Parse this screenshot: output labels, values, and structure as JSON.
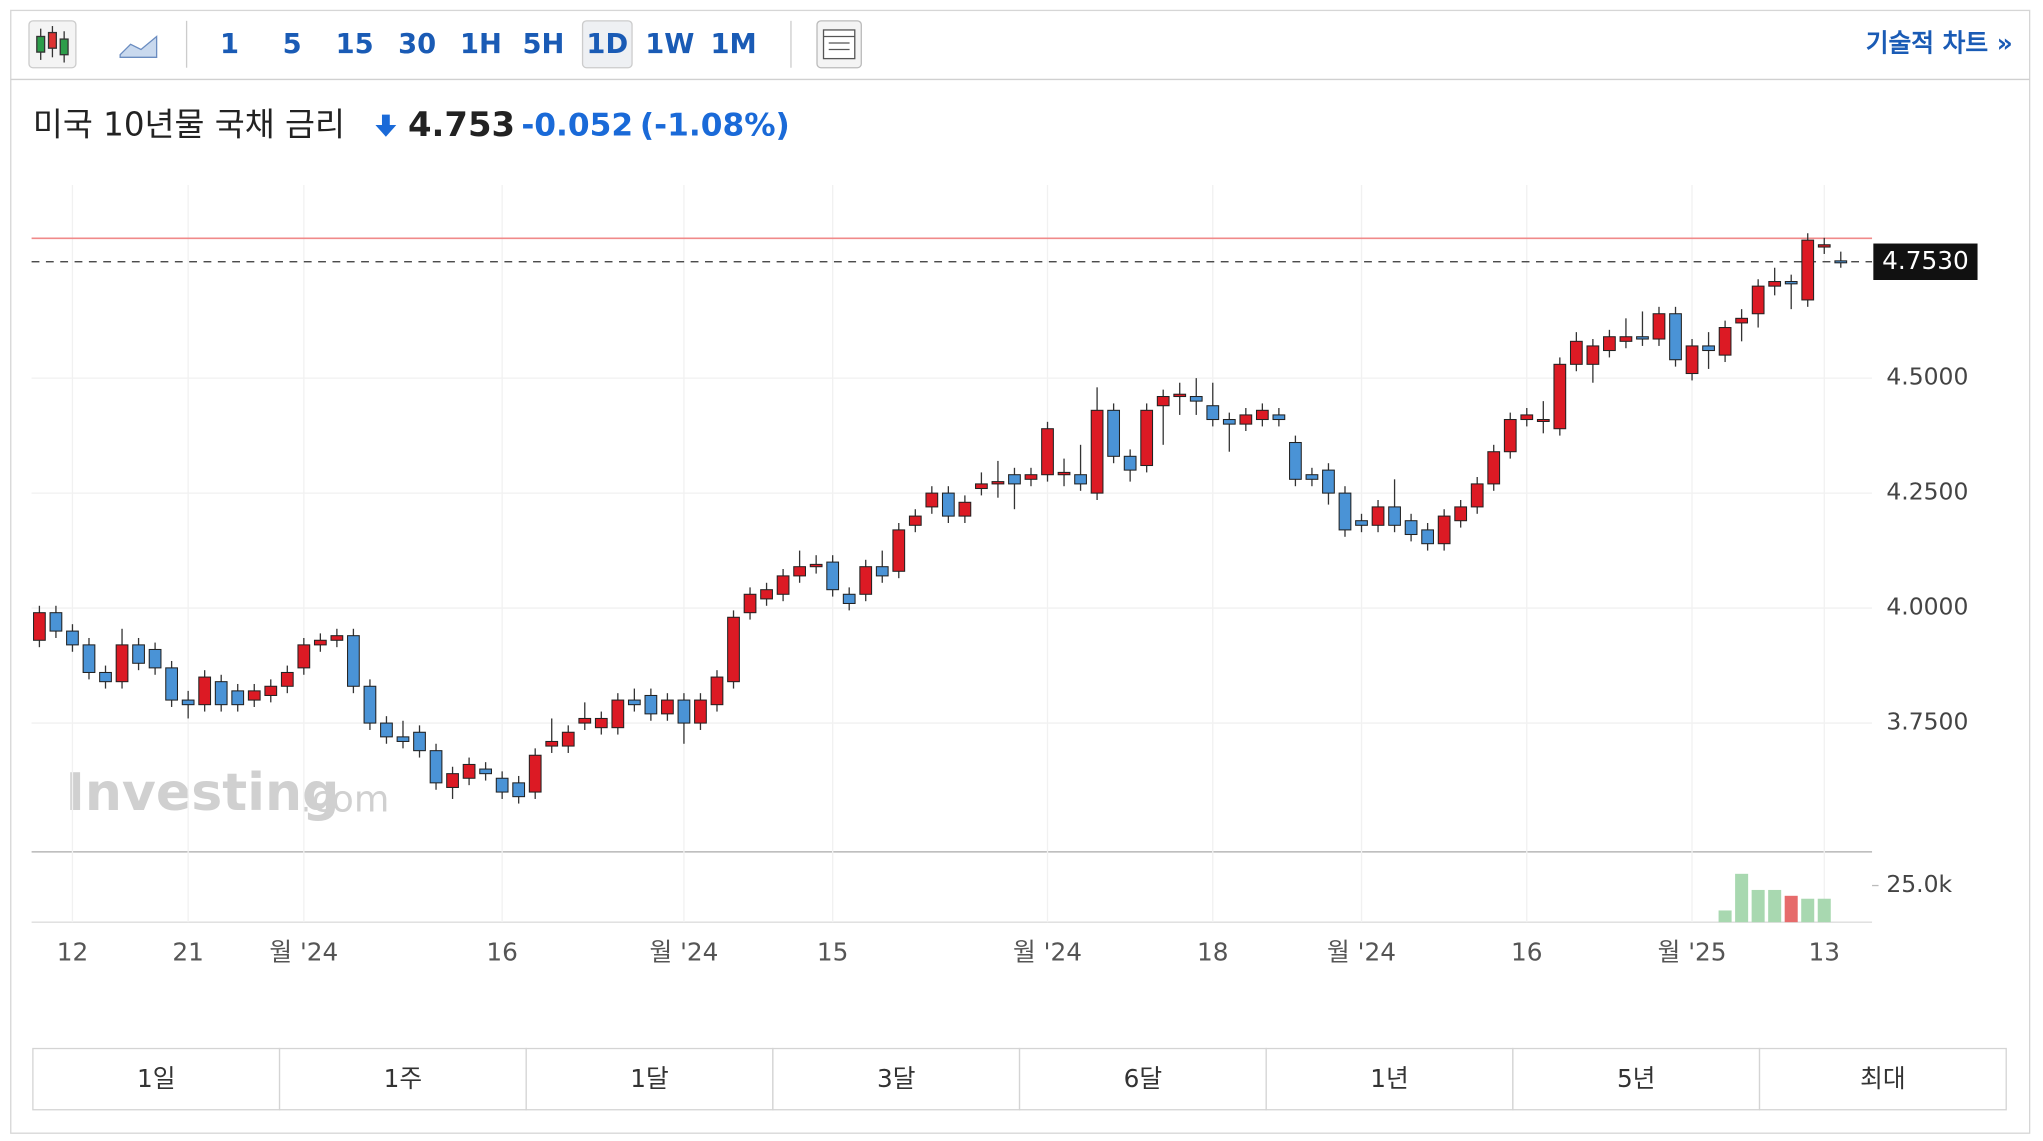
{
  "toolbar": {
    "intervals": [
      "1",
      "5",
      "15",
      "30",
      "1H",
      "5H",
      "1D",
      "1W",
      "1M"
    ],
    "selected": 6,
    "technical": "기술적 차트 »"
  },
  "header": {
    "title": "미국 10년물 국채 금리",
    "price": "4.753",
    "change": "-0.052",
    "change_pct": "(-1.08%)"
  },
  "watermark": {
    "brand": "Investing",
    "suffix": ".com"
  },
  "ranges": [
    "1일",
    "1주",
    "1달",
    "3달",
    "6달",
    "1년",
    "5년",
    "최대"
  ],
  "chart_data": {
    "type": "candlestick",
    "up_color": "#dc1a24",
    "down_color": "#4a93d6",
    "volume_up_color": "#a8d8b0",
    "volume_down_color": "#e66b6b",
    "ylim": [
      3.47,
      4.92
    ],
    "yticks": [
      {
        "value": 3.75,
        "label": "3.7500"
      },
      {
        "value": 4.0,
        "label": "4.0000"
      },
      {
        "value": 4.25,
        "label": "4.2500"
      },
      {
        "value": 4.5,
        "label": "4.5000"
      }
    ],
    "last_price": {
      "value": 4.753,
      "label": "4.7530"
    },
    "high_line": 4.804,
    "vlim": [
      0,
      48000
    ],
    "vticks": [
      {
        "value": 25000,
        "label": "25.0k"
      }
    ],
    "grid": true,
    "categories": [
      null,
      null,
      "12",
      null,
      null,
      null,
      null,
      null,
      null,
      "21",
      null,
      null,
      null,
      null,
      null,
      null,
      "월 '24",
      null,
      null,
      null,
      null,
      null,
      null,
      null,
      null,
      null,
      null,
      null,
      "16",
      null,
      null,
      null,
      null,
      null,
      null,
      null,
      null,
      null,
      null,
      "월 '24",
      null,
      null,
      null,
      null,
      null,
      null,
      null,
      null,
      "15",
      null,
      null,
      null,
      null,
      null,
      null,
      null,
      null,
      null,
      null,
      null,
      null,
      "월 '24",
      null,
      null,
      null,
      null,
      null,
      null,
      null,
      null,
      null,
      "18",
      null,
      null,
      null,
      null,
      null,
      null,
      null,
      null,
      "월 '24",
      null,
      null,
      null,
      null,
      null,
      null,
      null,
      null,
      null,
      "16",
      null,
      null,
      null,
      null,
      null,
      null,
      null,
      null,
      null,
      "월 '25",
      null,
      null,
      null,
      null,
      null,
      null,
      null,
      "13",
      null
    ],
    "ohlc": [
      [
        3.93,
        4.005,
        3.915,
        3.99
      ],
      [
        3.99,
        4.005,
        3.935,
        3.95
      ],
      [
        3.95,
        3.965,
        3.905,
        3.92
      ],
      [
        3.92,
        3.935,
        3.845,
        3.86
      ],
      [
        3.86,
        3.875,
        3.825,
        3.84
      ],
      [
        3.84,
        3.955,
        3.825,
        3.92
      ],
      [
        3.92,
        3.935,
        3.865,
        3.88
      ],
      [
        3.91,
        3.925,
        3.855,
        3.87
      ],
      [
        3.87,
        3.885,
        3.785,
        3.8
      ],
      [
        3.8,
        3.82,
        3.76,
        3.79
      ],
      [
        3.79,
        3.865,
        3.775,
        3.85
      ],
      [
        3.84,
        3.855,
        3.775,
        3.79
      ],
      [
        3.82,
        3.835,
        3.775,
        3.79
      ],
      [
        3.8,
        3.835,
        3.785,
        3.82
      ],
      [
        3.81,
        3.845,
        3.795,
        3.83
      ],
      [
        3.83,
        3.875,
        3.815,
        3.86
      ],
      [
        3.87,
        3.935,
        3.855,
        3.92
      ],
      [
        3.92,
        3.945,
        3.905,
        3.93
      ],
      [
        3.93,
        3.955,
        3.915,
        3.94
      ],
      [
        3.94,
        3.955,
        3.815,
        3.83
      ],
      [
        3.83,
        3.845,
        3.735,
        3.75
      ],
      [
        3.75,
        3.765,
        3.705,
        3.72
      ],
      [
        3.72,
        3.755,
        3.695,
        3.71
      ],
      [
        3.73,
        3.745,
        3.675,
        3.69
      ],
      [
        3.69,
        3.705,
        3.605,
        3.62
      ],
      [
        3.61,
        3.655,
        3.585,
        3.64
      ],
      [
        3.63,
        3.675,
        3.615,
        3.66
      ],
      [
        3.65,
        3.665,
        3.625,
        3.64
      ],
      [
        3.63,
        3.645,
        3.585,
        3.6
      ],
      [
        3.62,
        3.635,
        3.575,
        3.59
      ],
      [
        3.6,
        3.695,
        3.585,
        3.68
      ],
      [
        3.7,
        3.76,
        3.685,
        3.71
      ],
      [
        3.7,
        3.745,
        3.685,
        3.73
      ],
      [
        3.75,
        3.795,
        3.735,
        3.76
      ],
      [
        3.74,
        3.775,
        3.725,
        3.76
      ],
      [
        3.74,
        3.815,
        3.725,
        3.8
      ],
      [
        3.8,
        3.825,
        3.775,
        3.79
      ],
      [
        3.81,
        3.825,
        3.755,
        3.77
      ],
      [
        3.77,
        3.815,
        3.755,
        3.8
      ],
      [
        3.8,
        3.815,
        3.705,
        3.75
      ],
      [
        3.75,
        3.815,
        3.735,
        3.8
      ],
      [
        3.79,
        3.865,
        3.775,
        3.85
      ],
      [
        3.84,
        3.995,
        3.825,
        3.98
      ],
      [
        3.99,
        4.045,
        3.975,
        4.03
      ],
      [
        4.02,
        4.055,
        4.005,
        4.04
      ],
      [
        4.03,
        4.085,
        4.015,
        4.07
      ],
      [
        4.07,
        4.125,
        4.055,
        4.09
      ],
      [
        4.09,
        4.115,
        4.075,
        4.095
      ],
      [
        4.1,
        4.115,
        4.025,
        4.04
      ],
      [
        4.03,
        4.045,
        3.995,
        4.01
      ],
      [
        4.03,
        4.105,
        4.015,
        4.09
      ],
      [
        4.09,
        4.125,
        4.055,
        4.07
      ],
      [
        4.08,
        4.185,
        4.065,
        4.17
      ],
      [
        4.18,
        4.215,
        4.165,
        4.2
      ],
      [
        4.22,
        4.265,
        4.205,
        4.25
      ],
      [
        4.25,
        4.265,
        4.185,
        4.2
      ],
      [
        4.2,
        4.245,
        4.185,
        4.23
      ],
      [
        4.26,
        4.295,
        4.245,
        4.27
      ],
      [
        4.27,
        4.32,
        4.24,
        4.275
      ],
      [
        4.29,
        4.305,
        4.215,
        4.27
      ],
      [
        4.28,
        4.305,
        4.265,
        4.29
      ],
      [
        4.29,
        4.405,
        4.275,
        4.39
      ],
      [
        4.29,
        4.325,
        4.265,
        4.295
      ],
      [
        4.29,
        4.355,
        4.255,
        4.27
      ],
      [
        4.25,
        4.48,
        4.235,
        4.43
      ],
      [
        4.43,
        4.445,
        4.315,
        4.33
      ],
      [
        4.33,
        4.345,
        4.275,
        4.3
      ],
      [
        4.31,
        4.445,
        4.295,
        4.43
      ],
      [
        4.44,
        4.475,
        4.355,
        4.46
      ],
      [
        4.46,
        4.49,
        4.42,
        4.465
      ],
      [
        4.46,
        4.5,
        4.42,
        4.45
      ],
      [
        4.44,
        4.49,
        4.395,
        4.41
      ],
      [
        4.41,
        4.425,
        4.34,
        4.4
      ],
      [
        4.4,
        4.435,
        4.385,
        4.42
      ],
      [
        4.41,
        4.445,
        4.395,
        4.43
      ],
      [
        4.42,
        4.435,
        4.395,
        4.41
      ],
      [
        4.36,
        4.375,
        4.265,
        4.28
      ],
      [
        4.29,
        4.305,
        4.265,
        4.28
      ],
      [
        4.3,
        4.315,
        4.225,
        4.25
      ],
      [
        4.25,
        4.265,
        4.155,
        4.17
      ],
      [
        4.19,
        4.205,
        4.165,
        4.18
      ],
      [
        4.18,
        4.235,
        4.165,
        4.22
      ],
      [
        4.22,
        4.28,
        4.165,
        4.18
      ],
      [
        4.19,
        4.205,
        4.145,
        4.16
      ],
      [
        4.17,
        4.185,
        4.125,
        4.14
      ],
      [
        4.14,
        4.215,
        4.125,
        4.2
      ],
      [
        4.19,
        4.235,
        4.175,
        4.22
      ],
      [
        4.22,
        4.285,
        4.205,
        4.27
      ],
      [
        4.27,
        4.355,
        4.255,
        4.34
      ],
      [
        4.34,
        4.425,
        4.325,
        4.41
      ],
      [
        4.41,
        4.435,
        4.395,
        4.42
      ],
      [
        4.41,
        4.45,
        4.38,
        4.41
      ],
      [
        4.39,
        4.545,
        4.375,
        4.53
      ],
      [
        4.53,
        4.6,
        4.515,
        4.58
      ],
      [
        4.53,
        4.585,
        4.49,
        4.57
      ],
      [
        4.56,
        4.605,
        4.545,
        4.59
      ],
      [
        4.58,
        4.63,
        4.565,
        4.59
      ],
      [
        4.59,
        4.645,
        4.57,
        4.585
      ],
      [
        4.585,
        4.655,
        4.57,
        4.64
      ],
      [
        4.64,
        4.655,
        4.525,
        4.54
      ],
      [
        4.51,
        4.585,
        4.495,
        4.57
      ],
      [
        4.57,
        4.6,
        4.52,
        4.56
      ],
      [
        4.55,
        4.625,
        4.535,
        4.61
      ],
      [
        4.62,
        4.65,
        4.58,
        4.63
      ],
      [
        4.64,
        4.715,
        4.61,
        4.7
      ],
      [
        4.7,
        4.74,
        4.68,
        4.71
      ],
      [
        4.71,
        4.725,
        4.65,
        4.705
      ],
      [
        4.67,
        4.815,
        4.655,
        4.8
      ],
      [
        4.785,
        4.805,
        4.77,
        4.79
      ],
      [
        4.755,
        4.775,
        4.74,
        4.753
      ]
    ],
    "volume": [
      null,
      null,
      null,
      null,
      null,
      null,
      null,
      null,
      null,
      null,
      null,
      null,
      null,
      null,
      null,
      null,
      null,
      null,
      null,
      null,
      null,
      null,
      null,
      null,
      null,
      null,
      null,
      null,
      null,
      null,
      null,
      null,
      null,
      null,
      null,
      null,
      null,
      null,
      null,
      null,
      null,
      null,
      null,
      null,
      null,
      null,
      null,
      null,
      null,
      null,
      null,
      null,
      null,
      null,
      null,
      null,
      null,
      null,
      null,
      null,
      null,
      null,
      null,
      null,
      null,
      null,
      null,
      null,
      null,
      null,
      null,
      null,
      null,
      null,
      null,
      null,
      null,
      null,
      null,
      null,
      null,
      null,
      null,
      null,
      null,
      null,
      null,
      null,
      null,
      null,
      null,
      null,
      null,
      null,
      null,
      null,
      null,
      null,
      null,
      null,
      null,
      null,
      8000,
      33000,
      22000,
      22000,
      18000,
      16000,
      16000,
      null
    ]
  }
}
